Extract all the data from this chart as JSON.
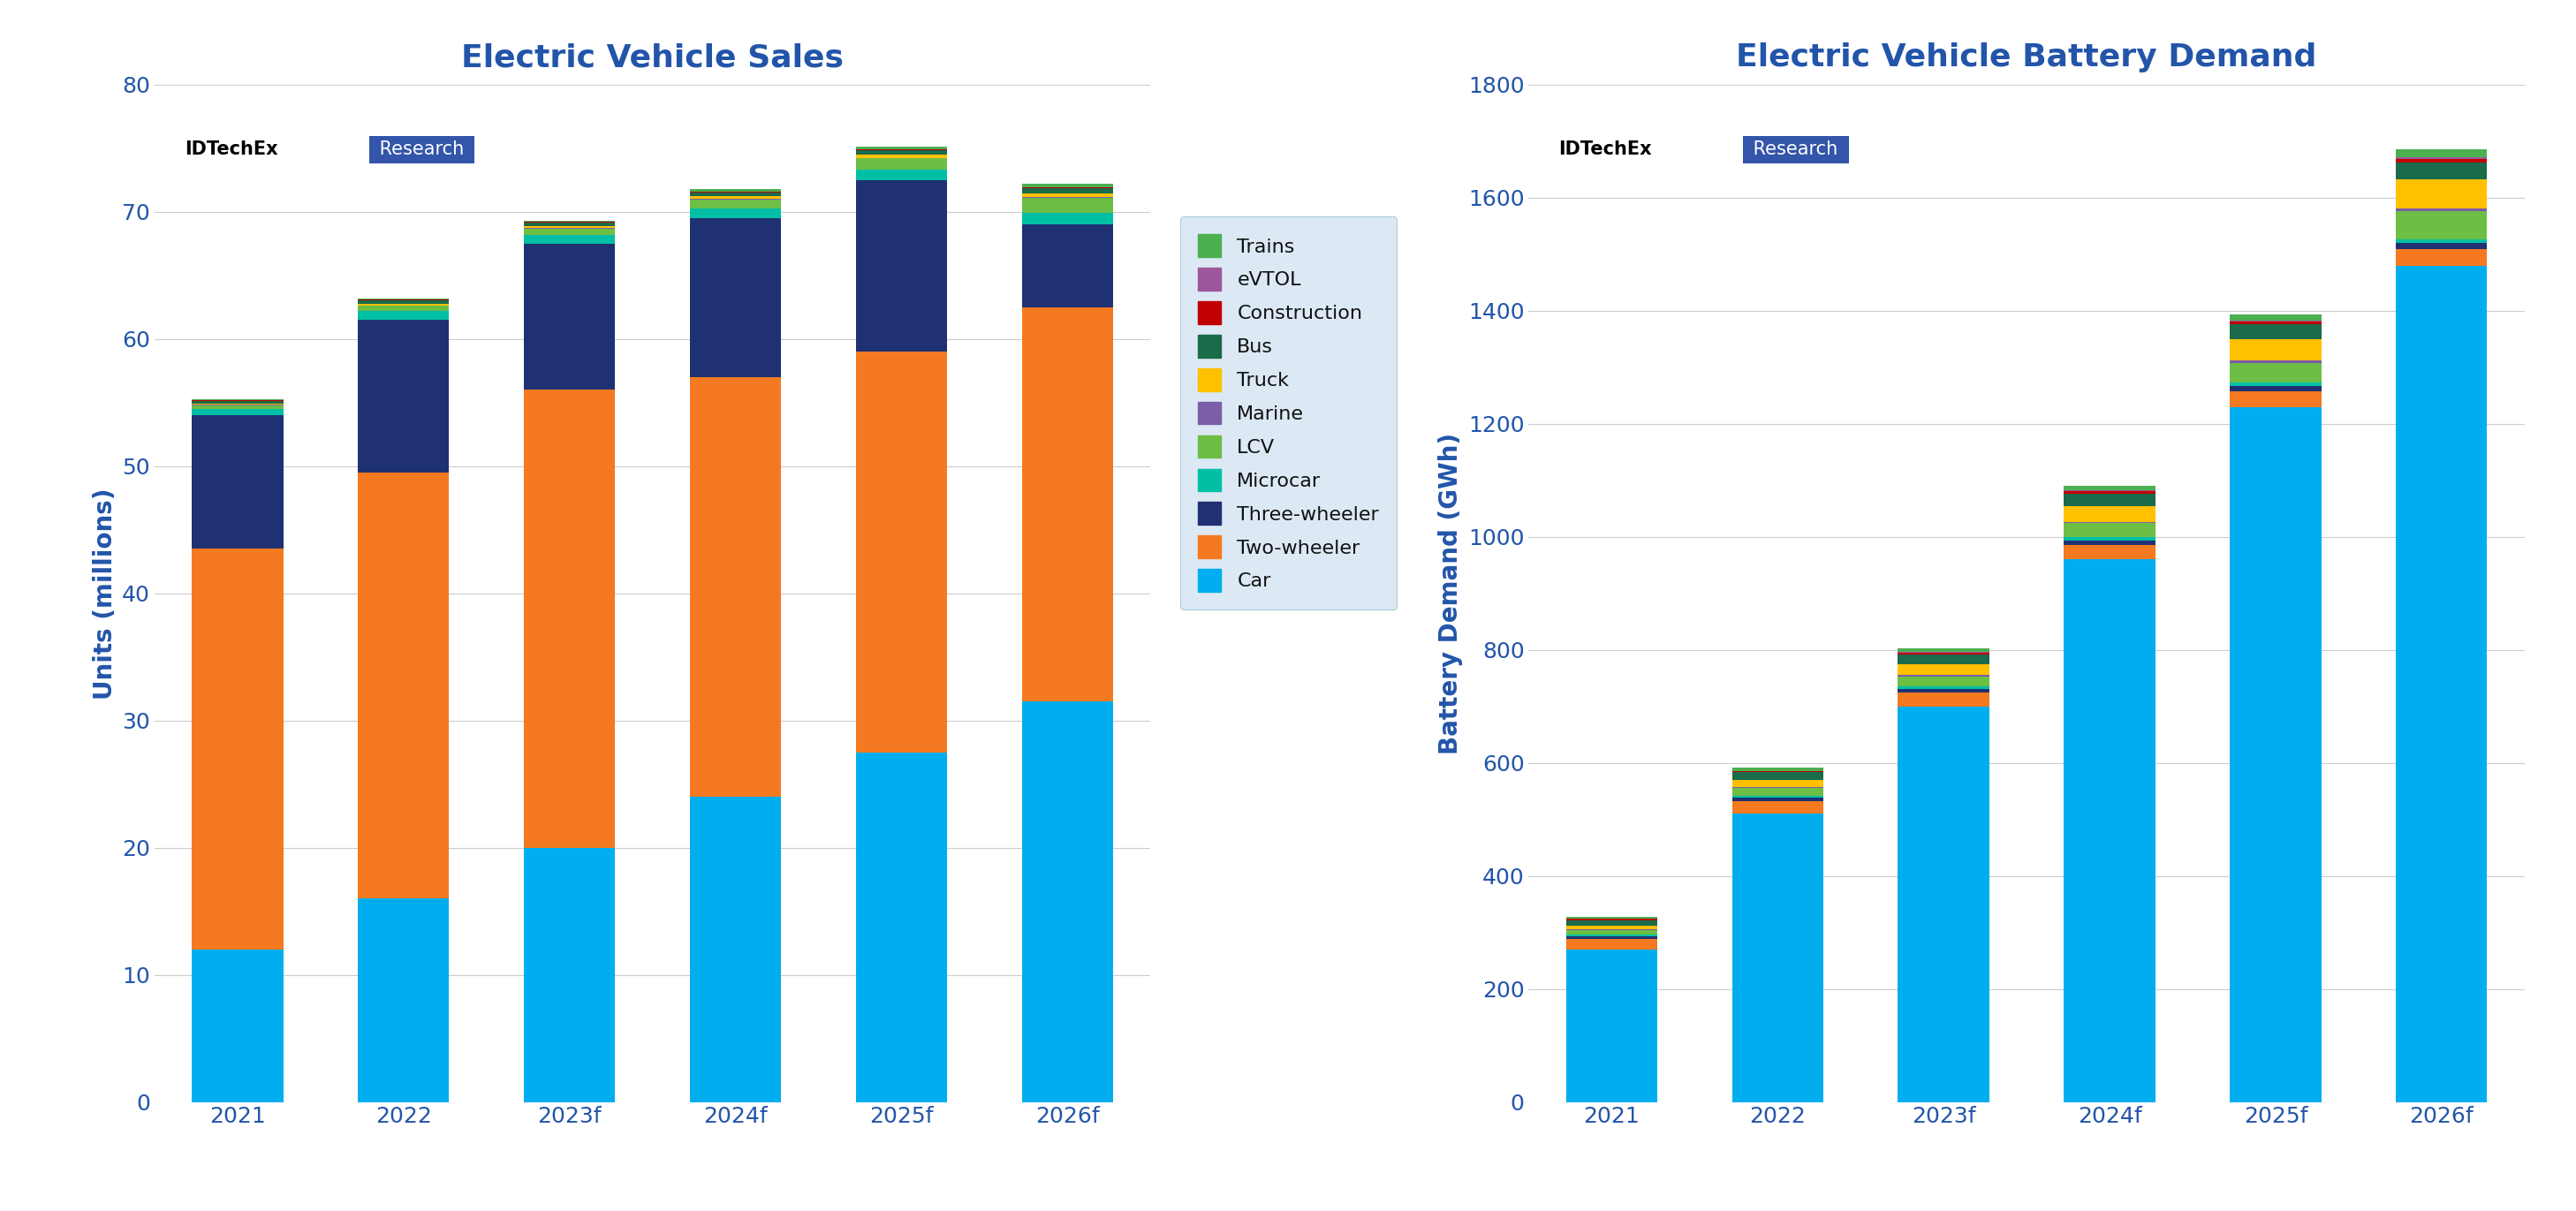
{
  "left_title": "Electric Vehicle Sales",
  "right_title": "Electric Vehicle Battery Demand",
  "left_ylabel": "Units (millions)",
  "right_ylabel": "Battery Demand (GWh)",
  "categories": [
    "2021",
    "2022",
    "2023f",
    "2024f",
    "2025f",
    "2026f"
  ],
  "left_ylim": [
    0,
    80
  ],
  "left_yticks": [
    0,
    10,
    20,
    30,
    40,
    50,
    60,
    70,
    80
  ],
  "right_ylim": [
    0,
    1800
  ],
  "right_yticks": [
    0,
    200,
    400,
    600,
    800,
    1000,
    1200,
    1400,
    1600,
    1800
  ],
  "segments": [
    "Car",
    "Two-wheeler",
    "Three-wheeler",
    "Microcar",
    "LCV",
    "Marine",
    "Truck",
    "Bus",
    "Construction",
    "eVTOL",
    "Trains"
  ],
  "colors": {
    "Car": "#00AEEF",
    "Two-wheeler": "#F47920",
    "Three-wheeler": "#1F3172",
    "Microcar": "#00BFA5",
    "LCV": "#6DBE45",
    "Marine": "#7B5EA7",
    "Truck": "#FFC000",
    "Bus": "#1A6B4A",
    "Construction": "#C00000",
    "eVTOL": "#9E579D",
    "Trains": "#4CAF50"
  },
  "left_data": {
    "Car": [
      12.0,
      16.0,
      20.0,
      24.0,
      27.5,
      31.5
    ],
    "Two-wheeler": [
      31.5,
      33.5,
      36.0,
      33.0,
      31.5,
      31.0
    ],
    "Three-wheeler": [
      10.5,
      12.0,
      11.5,
      12.5,
      13.5,
      6.5
    ],
    "Microcar": [
      0.5,
      0.7,
      0.7,
      0.8,
      0.8,
      0.9
    ],
    "LCV": [
      0.3,
      0.4,
      0.5,
      0.7,
      0.9,
      1.2
    ],
    "Marine": [
      0.05,
      0.05,
      0.05,
      0.05,
      0.05,
      0.05
    ],
    "Truck": [
      0.1,
      0.15,
      0.15,
      0.2,
      0.25,
      0.3
    ],
    "Bus": [
      0.2,
      0.25,
      0.25,
      0.3,
      0.35,
      0.4
    ],
    "Construction": [
      0.04,
      0.05,
      0.06,
      0.06,
      0.07,
      0.07
    ],
    "eVTOL": [
      0.0,
      0.0,
      0.01,
      0.01,
      0.02,
      0.03
    ],
    "Trains": [
      0.08,
      0.1,
      0.1,
      0.15,
      0.18,
      0.25
    ]
  },
  "right_data": {
    "Car": [
      270,
      510,
      700,
      960,
      1230,
      1480
    ],
    "Two-wheeler": [
      18,
      22,
      24,
      26,
      28,
      30
    ],
    "Three-wheeler": [
      5,
      6,
      7,
      8,
      9,
      10
    ],
    "Microcar": [
      3,
      4,
      4,
      5,
      6,
      7
    ],
    "LCV": [
      8,
      14,
      18,
      25,
      35,
      50
    ],
    "Marine": [
      2,
      2,
      3,
      3,
      4,
      4
    ],
    "Truck": [
      6,
      12,
      18,
      28,
      38,
      52
    ],
    "Bus": [
      10,
      14,
      18,
      22,
      26,
      30
    ],
    "Construction": [
      2,
      2,
      3,
      4,
      5,
      6
    ],
    "eVTOL": [
      0,
      0,
      1,
      1,
      2,
      3
    ],
    "Trains": [
      4,
      6,
      7,
      9,
      11,
      14
    ]
  },
  "title_color": "#2255AA",
  "axis_label_color": "#2255AA",
  "tick_color": "#2255AA",
  "background_color": "#FFFFFF",
  "grid_color": "#CCCCCC",
  "legend_bg": "#DCE9F5"
}
